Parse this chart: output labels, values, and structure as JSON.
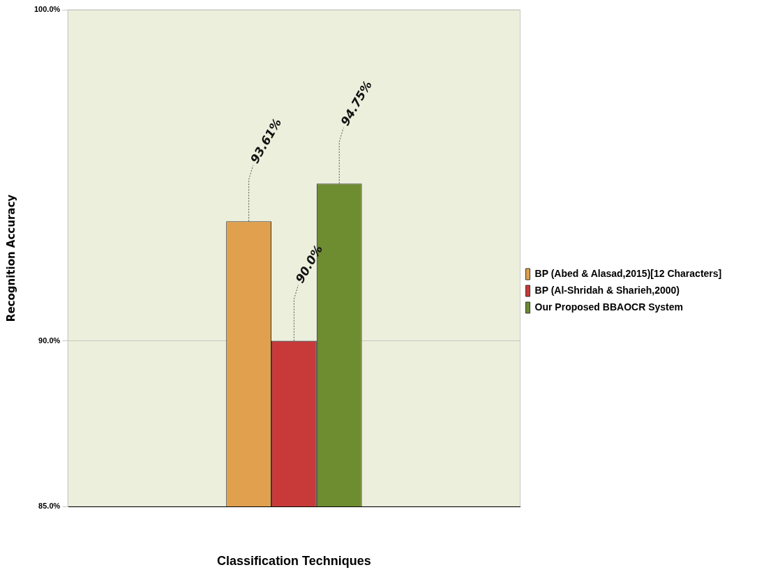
{
  "chart_data": {
    "type": "bar",
    "xlabel": "Classification Techniques",
    "ylabel": "Recognition Accuracy",
    "categories": [
      null
    ],
    "series": [
      {
        "name": "BP (Abed & Alasad,2015)[12 Characters]",
        "color": "#e0a04e",
        "values": [
          93.61
        ],
        "value_labels": [
          "93.61%"
        ]
      },
      {
        "name": "BP (Al-Shridah & Sharieh,2000)",
        "color": "#c83a3a",
        "values": [
          90.0
        ],
        "value_labels": [
          "90.0%"
        ]
      },
      {
        "name": "Our Proposed BBAOCR System",
        "color": "#6e8c30",
        "values": [
          94.75
        ],
        "value_labels": [
          "94.75%"
        ]
      }
    ],
    "ylim": [
      85,
      100
    ],
    "yticks": [
      {
        "value": 85,
        "label": "85.0%"
      },
      {
        "value": 90,
        "label": "90.0%"
      },
      {
        "value": 100,
        "label": "100.0%"
      }
    ],
    "grid": "y",
    "legend": "right"
  }
}
